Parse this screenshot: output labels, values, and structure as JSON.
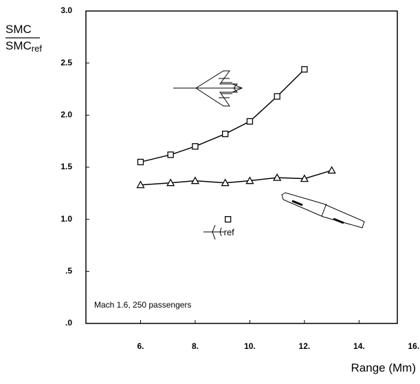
{
  "chart_data": {
    "type": "line",
    "y_label": {
      "numerator": "SMC",
      "denominator": "SMC",
      "denominator_subscript": "ref"
    },
    "x_label": "Range (Mm)",
    "annotation": "Mach 1.6,  250 passengers",
    "xlim": [
      4,
      15.4
    ],
    "ylim": [
      0,
      3
    ],
    "xticks": [
      {
        "value": 6,
        "label": "6."
      },
      {
        "value": 8,
        "label": "8."
      },
      {
        "value": 10,
        "label": "10."
      },
      {
        "value": 12,
        "label": "12."
      },
      {
        "value": 14,
        "label": "14."
      },
      {
        "value": 16,
        "label": "16."
      }
    ],
    "yticks": [
      {
        "value": 0,
        "label": ".0"
      },
      {
        "value": 0.5,
        "label": ".5"
      },
      {
        "value": 1,
        "label": "1.0"
      },
      1.5,
      {
        "value": 2,
        "label": "2.0"
      },
      2.5,
      {
        "value": 3,
        "label": "3.0"
      }
    ],
    "color": "#000000",
    "series": [
      {
        "marker": "square",
        "x": [
          6,
          7.1,
          8,
          9.1,
          10,
          11,
          12
        ],
        "values": [
          1.55,
          1.62,
          1.7,
          1.82,
          1.94,
          2.18,
          2.44
        ]
      },
      {
        "marker": "triangle",
        "x": [
          6,
          7.1,
          8,
          9.1,
          10,
          11,
          12,
          13
        ],
        "values": [
          1.33,
          1.35,
          1.37,
          1.35,
          1.37,
          1.4,
          1.39,
          1.47
        ]
      }
    ],
    "points": [
      {
        "x": 9.2,
        "y": 1.0,
        "label": "ref"
      }
    ]
  }
}
